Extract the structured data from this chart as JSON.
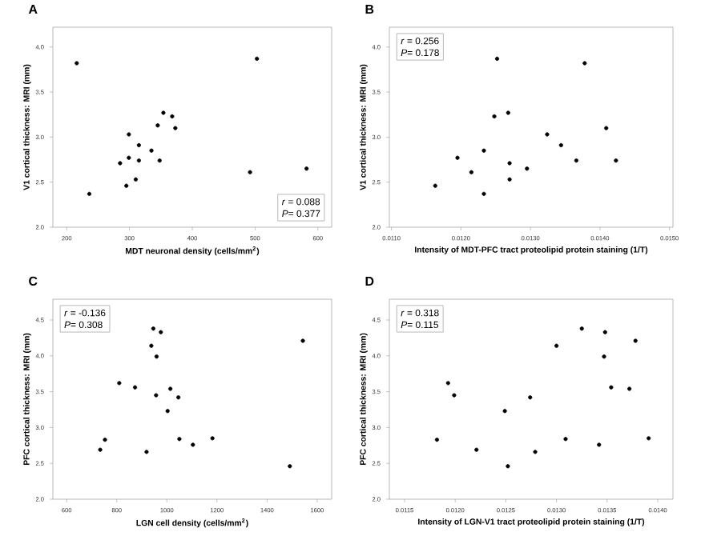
{
  "chart_data": [
    {
      "type": "scatter",
      "title": "A",
      "xlabel": "MDT neuronal density (cells/mm$^{2}$)",
      "ylabel": "V1 cortical thickness: MRI (mm)",
      "marker": "circle",
      "color": "#000000",
      "xlim": [
        178,
        622
      ],
      "xticks": [
        200,
        300,
        400,
        500,
        600
      ],
      "ylim": [
        2.0,
        4.22
      ],
      "yticks": [
        {
          "value": 2.0,
          "label": "2.0"
        },
        {
          "value": 2.5,
          "label": "2.5"
        },
        {
          "value": 3.0,
          "label": "3.0"
        },
        {
          "value": 3.5,
          "label": "3.5"
        },
        {
          "value": 4.0,
          "label": "4.0"
        }
      ],
      "x": [
        216,
        236,
        285,
        295,
        299,
        299,
        310,
        315,
        315,
        335,
        345,
        348,
        354,
        368,
        373,
        492,
        503,
        582
      ],
      "values": [
        3.82,
        2.37,
        2.71,
        2.46,
        2.77,
        3.03,
        2.53,
        2.91,
        2.74,
        2.85,
        3.13,
        2.74,
        3.27,
        3.23,
        3.1,
        2.61,
        3.87,
        2.65
      ],
      "annotations": [
        "*r* = 0.088",
        "*P*= 0.377"
      ]
    },
    {
      "type": "scatter",
      "title": "B",
      "xlabel": "Intensity of MDT-PFC tract proteolipid protein staining (1/T)",
      "ylabel": "V1 cortical thickness: MRI (mm)",
      "marker": "circle",
      "color": "#000000",
      "xlim": [
        0.01097,
        0.01505
      ],
      "xticks": [
        {
          "value": 0.011,
          "label": "0.0110"
        },
        {
          "value": 0.012,
          "label": "0.0120"
        },
        {
          "value": 0.013,
          "label": "0.0130"
        },
        {
          "value": 0.014,
          "label": "0.0140"
        },
        {
          "value": 0.015,
          "label": "0.0150"
        }
      ],
      "ylim": [
        2.0,
        4.22
      ],
      "yticks": [
        {
          "value": 2.0,
          "label": "2.0"
        },
        {
          "value": 2.5,
          "label": "2.5"
        },
        {
          "value": 3.0,
          "label": "3.0"
        },
        {
          "value": 3.5,
          "label": "3.5"
        },
        {
          "value": 4.0,
          "label": "4.0"
        }
      ],
      "x": [
        0.01163,
        0.01195,
        0.01215,
        0.01233,
        0.01233,
        0.01248,
        0.01252,
        0.0127,
        0.0127,
        0.01268,
        0.01295,
        0.01324,
        0.01344,
        0.01366,
        0.01378,
        0.01409,
        0.01423
      ],
      "values": [
        2.46,
        2.77,
        2.61,
        2.85,
        2.37,
        3.23,
        3.87,
        2.53,
        2.71,
        3.27,
        2.65,
        3.03,
        2.91,
        2.74,
        3.82,
        3.1,
        2.74
      ],
      "annotations": [
        "*r* =  0.256",
        "*P*=  0.178"
      ]
    },
    {
      "type": "scatter",
      "title": "C",
      "xlabel": "LGN cell density (cells/mm$^{2}$)",
      "ylabel": "PFC cortical thickness: MRI (mm)",
      "marker": "circle",
      "color": "#000000",
      "xlim": [
        545,
        1658
      ],
      "xticks": [
        600,
        800,
        1000,
        1200,
        1400,
        1600
      ],
      "ylim": [
        2.0,
        4.79
      ],
      "yticks": [
        {
          "value": 2.0,
          "label": "2.0"
        },
        {
          "value": 2.5,
          "label": "2.5"
        },
        {
          "value": 3.0,
          "label": "3.0"
        },
        {
          "value": 3.5,
          "label": "3.5"
        },
        {
          "value": 4.0,
          "label": "4.0"
        },
        {
          "value": 4.5,
          "label": "4.5"
        }
      ],
      "x": [
        734,
        753,
        810,
        873,
        919,
        938,
        946,
        957,
        959,
        976,
        1003,
        1014,
        1046,
        1050,
        1104,
        1182,
        1491,
        1543
      ],
      "values": [
        2.69,
        2.83,
        3.62,
        3.56,
        2.66,
        4.14,
        4.38,
        3.45,
        3.99,
        4.33,
        3.23,
        3.54,
        3.42,
        2.84,
        2.76,
        2.85,
        2.46,
        4.21
      ],
      "annotations": [
        "*r* = -0.136",
        "*P*=  0.308"
      ]
    },
    {
      "type": "scatter",
      "title": "D",
      "xlabel": "Intensity of LGN-V1 tract proteolipid protein staining (1/T)",
      "ylabel": "PFC cortical thickness: MRI (mm)",
      "marker": "circle",
      "color": "#000000",
      "xlim": [
        0.01135,
        0.01415
      ],
      "xticks": [
        {
          "value": 0.0115,
          "label": "0.0115"
        },
        {
          "value": 0.012,
          "label": "0.0120"
        },
        {
          "value": 0.0125,
          "label": "0.0125"
        },
        {
          "value": 0.013,
          "label": "0.0130"
        },
        {
          "value": 0.0135,
          "label": "0.0135"
        },
        {
          "value": 0.014,
          "label": "0.0140"
        }
      ],
      "ylim": [
        2.0,
        4.79
      ],
      "yticks": [
        {
          "value": 2.0,
          "label": "2.0"
        },
        {
          "value": 2.5,
          "label": "2.5"
        },
        {
          "value": 3.0,
          "label": "3.0"
        },
        {
          "value": 3.5,
          "label": "3.5"
        },
        {
          "value": 4.0,
          "label": "4.0"
        },
        {
          "value": 4.5,
          "label": "4.5"
        }
      ],
      "x": [
        0.01182,
        0.01193,
        0.01199,
        0.01221,
        0.01249,
        0.01252,
        0.01274,
        0.01279,
        0.013,
        0.01309,
        0.01325,
        0.01342,
        0.01347,
        0.01348,
        0.01354,
        0.01372,
        0.01378,
        0.01391
      ],
      "values": [
        2.83,
        3.62,
        3.45,
        2.69,
        3.23,
        2.46,
        3.42,
        2.66,
        4.14,
        2.84,
        4.38,
        2.76,
        3.99,
        4.33,
        3.56,
        3.54,
        4.21,
        2.85
      ],
      "annotations": [
        "*r* =  0.318",
        "*P*=  0.115"
      ]
    }
  ]
}
